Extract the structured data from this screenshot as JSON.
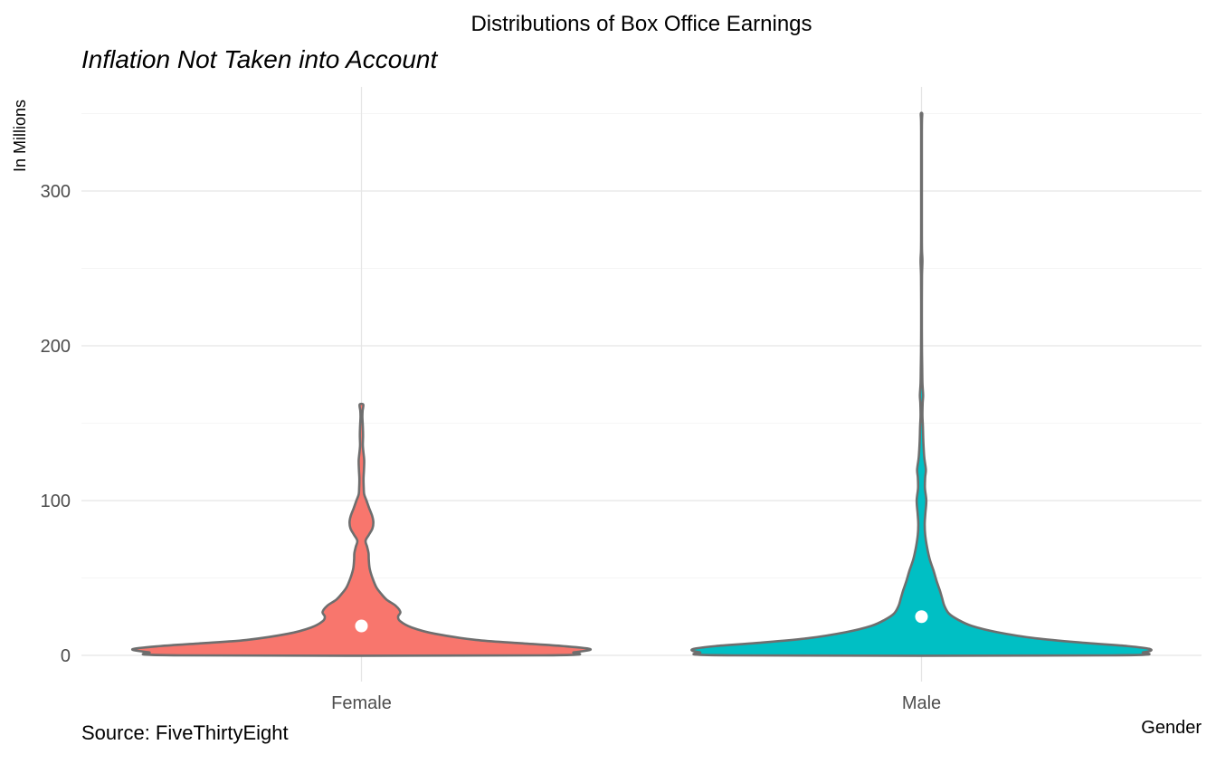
{
  "chart_data": {
    "type": "violin",
    "title": "Distributions of Box Office Earnings",
    "subtitle": "Inflation Not Taken into Account",
    "caption": "Source: FiveThirtyEight",
    "xlabel": "Gender",
    "ylabel": "In Millions",
    "ylim": [
      -15,
      370
    ],
    "y_ticks": [
      0,
      100,
      200,
      300
    ],
    "y_tick_labels": [
      "0",
      "100",
      "200",
      "300"
    ],
    "categories": [
      "Female",
      "Male"
    ],
    "grid": true,
    "legend": "none",
    "series": [
      {
        "category": "Female",
        "color": "#F8766D",
        "median": 19,
        "min": 0,
        "max": 162,
        "density_profile": [
          [
            0,
            0.79
          ],
          [
            2,
            0.93
          ],
          [
            4,
            1.0
          ],
          [
            6,
            0.88
          ],
          [
            8,
            0.68
          ],
          [
            10,
            0.5
          ],
          [
            14,
            0.32
          ],
          [
            18,
            0.22
          ],
          [
            22,
            0.17
          ],
          [
            25,
            0.16
          ],
          [
            28,
            0.17
          ],
          [
            32,
            0.15
          ],
          [
            36,
            0.11
          ],
          [
            40,
            0.085
          ],
          [
            44,
            0.065
          ],
          [
            50,
            0.048
          ],
          [
            56,
            0.036
          ],
          [
            62,
            0.032
          ],
          [
            66,
            0.031
          ],
          [
            70,
            0.025
          ],
          [
            74,
            0.018
          ],
          [
            78,
            0.033
          ],
          [
            82,
            0.048
          ],
          [
            86,
            0.052
          ],
          [
            90,
            0.047
          ],
          [
            95,
            0.034
          ],
          [
            100,
            0.022
          ],
          [
            104,
            0.012
          ],
          [
            108,
            0.01
          ],
          [
            114,
            0.009
          ],
          [
            120,
            0.011
          ],
          [
            126,
            0.012
          ],
          [
            132,
            0.008
          ],
          [
            136,
            0.006
          ],
          [
            142,
            0.007
          ],
          [
            148,
            0.006
          ],
          [
            154,
            0.004
          ],
          [
            158,
            0.005
          ],
          [
            162,
            0.008
          ]
        ]
      },
      {
        "category": "Male",
        "color": "#00BFC4",
        "median": 25,
        "min": 0,
        "max": 350,
        "density_profile": [
          [
            0,
            0.82
          ],
          [
            2,
            0.97
          ],
          [
            4,
            1.0
          ],
          [
            6,
            0.9
          ],
          [
            8,
            0.72
          ],
          [
            11,
            0.5
          ],
          [
            15,
            0.33
          ],
          [
            19,
            0.22
          ],
          [
            23,
            0.16
          ],
          [
            27,
            0.12
          ],
          [
            32,
            0.1
          ],
          [
            37,
            0.09
          ],
          [
            42,
            0.08
          ],
          [
            48,
            0.066
          ],
          [
            55,
            0.052
          ],
          [
            62,
            0.036
          ],
          [
            70,
            0.024
          ],
          [
            78,
            0.016
          ],
          [
            85,
            0.014
          ],
          [
            92,
            0.017
          ],
          [
            100,
            0.021
          ],
          [
            108,
            0.015
          ],
          [
            115,
            0.016
          ],
          [
            120,
            0.019
          ],
          [
            128,
            0.012
          ],
          [
            138,
            0.008
          ],
          [
            148,
            0.006
          ],
          [
            155,
            0.004
          ],
          [
            163,
            0.005
          ],
          [
            168,
            0.007
          ],
          [
            176,
            0.004
          ],
          [
            186,
            0.003
          ],
          [
            196,
            0.002
          ],
          [
            210,
            0.0015
          ],
          [
            230,
            0.0015
          ],
          [
            245,
            0.002
          ],
          [
            255,
            0.004
          ],
          [
            262,
            0.002
          ],
          [
            275,
            0.0015
          ],
          [
            300,
            0.0015
          ],
          [
            320,
            0.0015
          ],
          [
            338,
            0.0015
          ],
          [
            346,
            0.002
          ],
          [
            350,
            0.003
          ]
        ]
      }
    ]
  }
}
